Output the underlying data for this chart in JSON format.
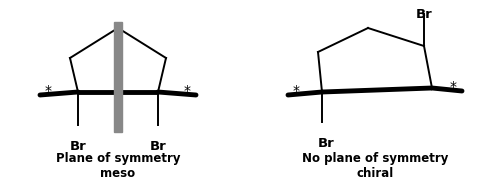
{
  "background_color": "#ffffff",
  "fig_width": 4.97,
  "fig_height": 1.92,
  "dpi": 100,
  "meso": {
    "label1": "Plane of symmetry",
    "label2": "meso",
    "plane_color": "#888888"
  },
  "chiral": {
    "label1": "No plane of symmetry",
    "label2": "chiral"
  },
  "line_color": "#000000",
  "bold_lw": 3.5,
  "thin_lw": 1.4,
  "font_size_label": 8.5,
  "font_size_br": 9.5,
  "font_size_star": 10
}
